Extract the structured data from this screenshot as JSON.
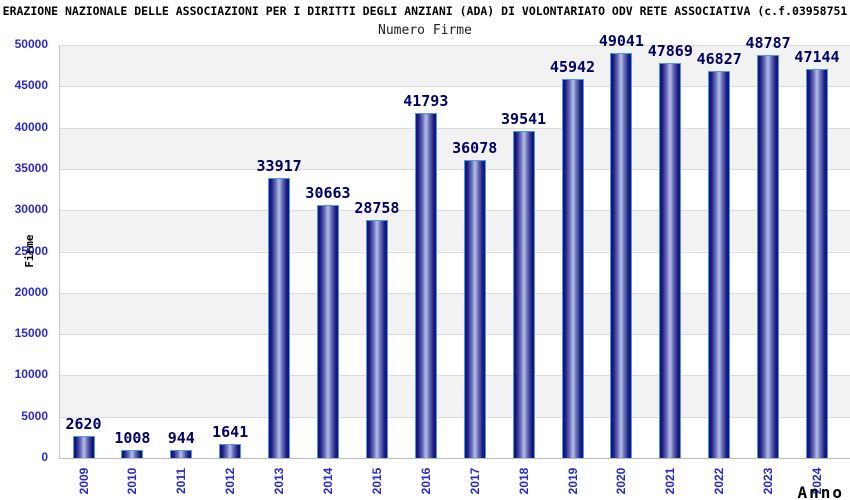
{
  "header": {
    "title": "ERAZIONE NAZIONALE DELLE ASSOCIAZIONI PER I DIRITTI DEGLI ANZIANI (ADA) DI VOLONTARIATO ODV RETE ASSOCIATIVA (c.f.03958751",
    "subtitle": "Numero Firme"
  },
  "chart_data": {
    "type": "bar",
    "title": "Numero Firme",
    "categories": [
      "2009",
      "2010",
      "2011",
      "2012",
      "2013",
      "2014",
      "2015",
      "2016",
      "2017",
      "2018",
      "2019",
      "2020",
      "2021",
      "2022",
      "2023",
      "2024"
    ],
    "values": [
      2620,
      1008,
      944,
      1641,
      33917,
      30663,
      28758,
      41793,
      36078,
      39541,
      45942,
      49041,
      47869,
      46827,
      48787,
      47144
    ],
    "xlabel": "Anno",
    "ylabel": "Firme",
    "ylim": [
      0,
      50000
    ],
    "ytick_step": 5000,
    "grid": "horizontal-lines-with-alternating-bands",
    "legend": "none",
    "value_labels": true,
    "x_tick_rotation_deg": -90
  },
  "colors": {
    "axis_text": "#2a2acc",
    "value_label_text": "#000066",
    "title_text": "#000000",
    "subtitle_text": "#222222",
    "bar_border": "#4a9ae0",
    "bar_dark": "#12127c",
    "bar_mid": "#6a72b8",
    "bar_light": "#b7bde8",
    "band_gray": "#f2f2f2",
    "band_white": "#ffffff",
    "grid_line": "#dcdcdc",
    "axis_line": "#bcbcbc",
    "frame_line": "#c6c6c6"
  }
}
